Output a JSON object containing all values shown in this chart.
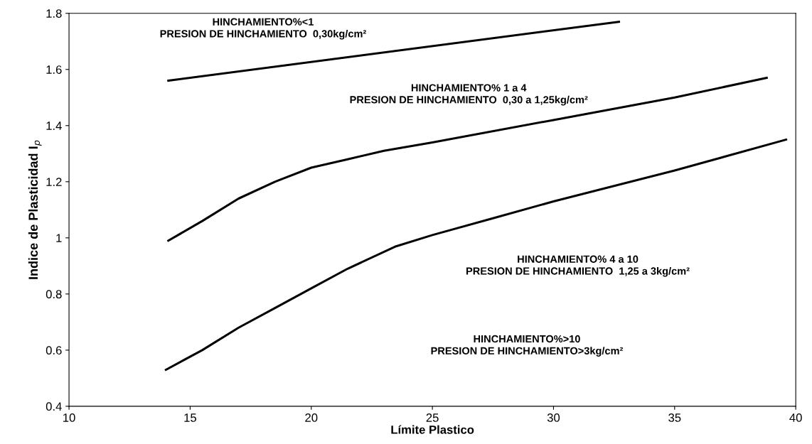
{
  "chart_data": {
    "type": "line",
    "xlabel": "Límite Plastico",
    "ylabel": "Indice de Plasticidad I$_{p}$",
    "xlim": [
      10,
      40
    ],
    "xticks": [
      10,
      15,
      20,
      25,
      30,
      35,
      40
    ],
    "ylim": [
      0.4,
      1.8
    ],
    "yticks": [
      0.4,
      0.6,
      0.8,
      1,
      1.2,
      1.4,
      1.6,
      1.8
    ],
    "grid": false,
    "marker": "none",
    "line_style": "solid",
    "series": [
      {
        "color": "#000000",
        "x": [
          14.1,
          32.7
        ],
        "values": [
          1.56,
          1.77
        ]
      },
      {
        "color": "#000000",
        "x": [
          14.1,
          15.5,
          17,
          18.5,
          20,
          21.5,
          23,
          25,
          30,
          35,
          38.8
        ],
        "values": [
          0.99,
          1.06,
          1.14,
          1.2,
          1.25,
          1.28,
          1.31,
          1.34,
          1.42,
          1.5,
          1.57
        ]
      },
      {
        "color": "#000000",
        "x": [
          14,
          15.5,
          17,
          18.5,
          20,
          21.5,
          23.5,
          25,
          27.5,
          30,
          35,
          39.6
        ],
        "values": [
          0.53,
          0.6,
          0.68,
          0.75,
          0.82,
          0.89,
          0.97,
          1.01,
          1.07,
          1.13,
          1.24,
          1.35
        ]
      }
    ],
    "annotations": [
      "HINCHAMIENTO%<1\nPRESION DE HINCHAMIENTO  0,30kg/cm²",
      "HINCHAMIENTO% 1 a 4\nPRESION DE HINCHAMIENTO  0,30 a 1,25kg/cm²",
      "HINCHAMIENTO% 4 a 10\nPRESION DE HINCHAMIENTO  1,25 a 3kg/cm²",
      "HINCHAMIENTO%>10\nPRESION DE HINCHAMIENTO>3kg/cm²"
    ]
  }
}
